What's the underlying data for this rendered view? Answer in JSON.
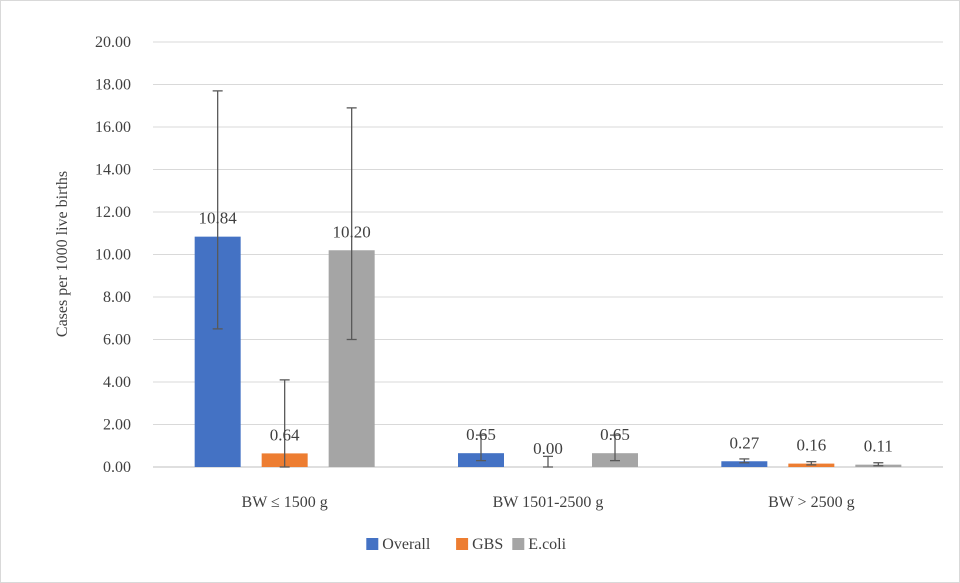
{
  "chart_data": {
    "type": "bar",
    "title": "",
    "xlabel": "",
    "ylabel": "Cases per 1000 live births",
    "ylim": [
      0,
      20
    ],
    "yticks": [
      "0.00",
      "2.00",
      "4.00",
      "6.00",
      "8.00",
      "10.00",
      "12.00",
      "14.00",
      "16.00",
      "18.00",
      "20.00"
    ],
    "grid": true,
    "legend_position": "bottom",
    "categories": [
      "BW ≤ 1500 g",
      "BW 1501-2500 g",
      "BW > 2500 g"
    ],
    "series": [
      {
        "name": "Overall",
        "color": "#4472C4",
        "values": [
          10.84,
          0.65,
          0.27
        ],
        "labels": [
          "10.84",
          "0.65",
          "0.27"
        ],
        "error_low": [
          6.5,
          0.3,
          0.2
        ],
        "error_high": [
          17.7,
          1.5,
          0.38
        ]
      },
      {
        "name": "GBS",
        "color": "#ED7D31",
        "values": [
          0.64,
          0.0,
          0.16
        ],
        "labels": [
          "0.64",
          "0.00",
          "0.16"
        ],
        "error_low": [
          0.0,
          0.0,
          0.1
        ],
        "error_high": [
          4.1,
          0.5,
          0.25
        ]
      },
      {
        "name": "E.coli",
        "color": "#A5A5A5",
        "values": [
          10.2,
          0.65,
          0.11
        ],
        "labels": [
          "10.20",
          "0.65",
          "0.11"
        ],
        "error_low": [
          6.0,
          0.3,
          0.06
        ],
        "error_high": [
          16.9,
          1.5,
          0.2
        ]
      }
    ]
  }
}
